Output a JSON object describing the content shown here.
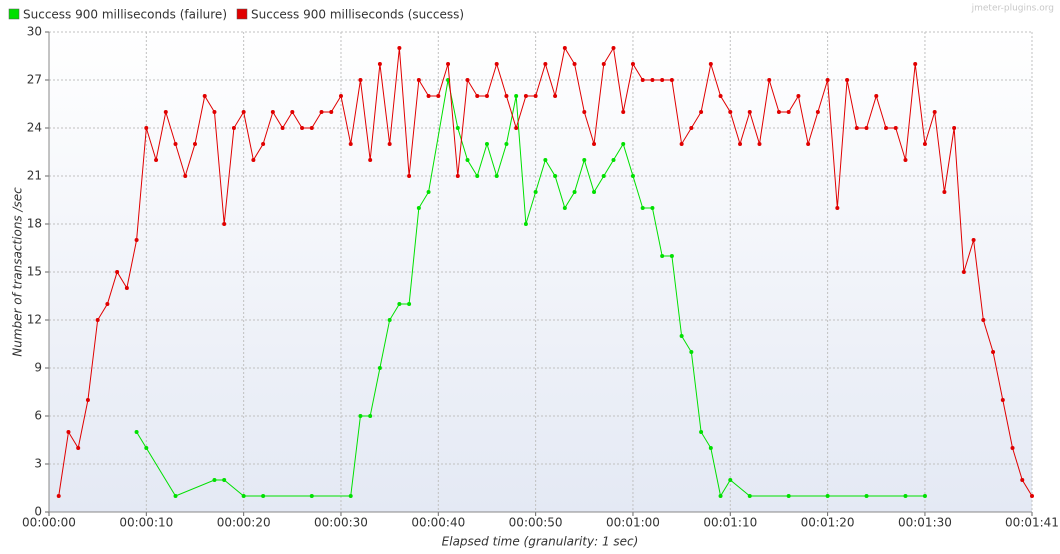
{
  "chart_data": {
    "type": "line",
    "watermark": "jmeter-plugins.org",
    "x_label": "Elapsed time (granularity: 1 sec)",
    "y_label": "Number of transactions /sec",
    "xlim": [
      0,
      101
    ],
    "ylim": [
      0,
      30
    ],
    "xticks": [
      {
        "value": 0,
        "label": "00:00:00"
      },
      {
        "value": 10,
        "label": "00:00:10"
      },
      {
        "value": 20,
        "label": "00:00:20"
      },
      {
        "value": 30,
        "label": "00:00:30"
      },
      {
        "value": 40,
        "label": "00:00:40"
      },
      {
        "value": 50,
        "label": "00:00:50"
      },
      {
        "value": 60,
        "label": "00:01:00"
      },
      {
        "value": 70,
        "label": "00:01:10"
      },
      {
        "value": 80,
        "label": "00:01:20"
      },
      {
        "value": 90,
        "label": "00:01:30"
      },
      {
        "value": 101,
        "label": "00:01:41"
      }
    ],
    "yticks": [
      0,
      3,
      6,
      9,
      12,
      15,
      18,
      21,
      24,
      27,
      30
    ],
    "grid": true,
    "series": [
      {
        "name": "Success 900 milliseconds (failure)",
        "color": "#00e000",
        "x": [
          9,
          10,
          13,
          17,
          18,
          20,
          22,
          27,
          31,
          32,
          33,
          34,
          35,
          36,
          37,
          38,
          39,
          41,
          42,
          43,
          44,
          45,
          46,
          47,
          48,
          49,
          50,
          51,
          52,
          53,
          54,
          55,
          56,
          57,
          58,
          59,
          60,
          61,
          62,
          63,
          64,
          65,
          66,
          67,
          68,
          69,
          70,
          72,
          76,
          80,
          84,
          88,
          90
        ],
        "values": [
          5,
          4,
          1,
          2,
          2,
          1,
          1,
          1,
          1,
          6,
          6,
          9,
          12,
          13,
          13,
          19,
          20,
          27,
          24,
          22,
          21,
          23,
          21,
          23,
          26,
          18,
          20,
          22,
          21,
          19,
          20,
          22,
          20,
          21,
          22,
          23,
          21,
          19,
          19,
          16,
          16,
          11,
          10,
          5,
          4,
          1,
          2,
          1,
          1,
          1,
          1,
          1,
          1
        ]
      },
      {
        "name": "Success 900 milliseconds (success)",
        "color": "#e00000",
        "x": [
          1,
          2,
          3,
          4,
          5,
          6,
          7,
          8,
          9,
          10,
          11,
          12,
          13,
          14,
          15,
          16,
          17,
          18,
          19,
          20,
          21,
          22,
          23,
          24,
          25,
          26,
          27,
          28,
          29,
          30,
          31,
          32,
          33,
          34,
          35,
          36,
          37,
          38,
          39,
          40,
          41,
          42,
          43,
          44,
          45,
          46,
          47,
          48,
          49,
          50,
          51,
          52,
          53,
          54,
          55,
          56,
          57,
          58,
          59,
          60,
          61,
          62,
          63,
          64,
          65,
          66,
          67,
          68,
          69,
          70,
          71,
          72,
          73,
          74,
          75,
          76,
          77,
          78,
          79,
          80,
          81,
          82,
          83,
          84,
          85,
          86,
          87,
          88,
          89,
          90,
          91,
          92,
          93,
          94,
          95,
          96,
          97,
          98,
          99,
          100,
          101
        ],
        "values": [
          1,
          5,
          4,
          7,
          12,
          13,
          15,
          14,
          17,
          24,
          22,
          25,
          23,
          21,
          23,
          26,
          25,
          18,
          24,
          25,
          22,
          23,
          25,
          24,
          25,
          24,
          24,
          25,
          25,
          26,
          23,
          27,
          22,
          28,
          23,
          29,
          21,
          27,
          26,
          26,
          28,
          21,
          27,
          26,
          26,
          28,
          26,
          24,
          26,
          26,
          28,
          26,
          29,
          28,
          25,
          23,
          28,
          29,
          25,
          28,
          27,
          27,
          27,
          27,
          23,
          24,
          25,
          28,
          26,
          25,
          23,
          25,
          23,
          27,
          25,
          25,
          26,
          23,
          25,
          27,
          19,
          27,
          24,
          24,
          26,
          24,
          24,
          22,
          28,
          23,
          25,
          20,
          24,
          15,
          17,
          12,
          10,
          7,
          4,
          2,
          1
        ]
      }
    ]
  }
}
